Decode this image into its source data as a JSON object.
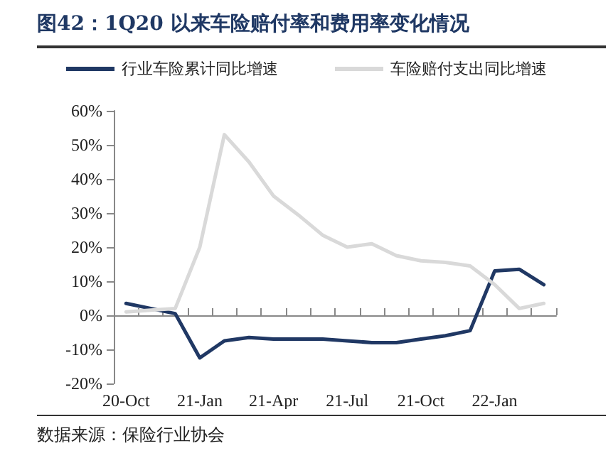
{
  "chart_data": {
    "type": "line",
    "title": "图42：1Q20 以来车险赔付率和费用率变化情况",
    "categories": [
      "20-Oct",
      null,
      null,
      "21-Jan",
      null,
      null,
      "21-Apr",
      null,
      null,
      "21-Jul",
      null,
      null,
      "21-Oct",
      null,
      null,
      "22-Jan",
      null,
      null
    ],
    "series": [
      {
        "name": "行业车险累计同比增速",
        "color": "#203864",
        "values": [
          3.5,
          2,
          0.5,
          -12.5,
          -7.5,
          -6.5,
          -7,
          -7,
          -7,
          -7.5,
          -8,
          -8,
          -7,
          -6,
          -4.5,
          13,
          13.5,
          9
        ]
      },
      {
        "name": "车险赔付支出同比增速",
        "color": "#d9d9d9",
        "values": [
          1,
          1.5,
          2,
          20,
          53,
          45,
          35,
          29.5,
          23.5,
          20,
          21,
          17.5,
          16,
          15.5,
          14.5,
          9,
          2,
          3.5
        ]
      }
    ],
    "ylim": [
      -20,
      60
    ],
    "yticks": [
      {
        "value": -20,
        "label": "-20%"
      },
      {
        "value": -10,
        "label": "-10%"
      },
      {
        "value": 0,
        "label": "0%"
      },
      {
        "value": 10,
        "label": "10%"
      },
      {
        "value": 20,
        "label": "20%"
      },
      {
        "value": 30,
        "label": "30%"
      },
      {
        "value": 40,
        "label": "40%"
      },
      {
        "value": 50,
        "label": "50%"
      },
      {
        "value": 60,
        "label": "60%"
      }
    ],
    "legend": "top",
    "marker": "none",
    "line_style": "solid",
    "annotations": [
      "数据来源：保险行业协会"
    ]
  }
}
